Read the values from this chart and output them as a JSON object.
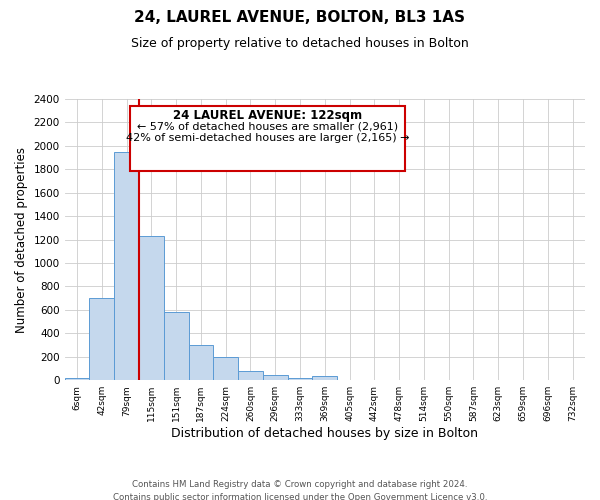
{
  "title": "24, LAUREL AVENUE, BOLTON, BL3 1AS",
  "subtitle": "Size of property relative to detached houses in Bolton",
  "xlabel": "Distribution of detached houses by size in Bolton",
  "ylabel": "Number of detached properties",
  "bin_labels": [
    "6sqm",
    "42sqm",
    "79sqm",
    "115sqm",
    "151sqm",
    "187sqm",
    "224sqm",
    "260sqm",
    "296sqm",
    "333sqm",
    "369sqm",
    "405sqm",
    "442sqm",
    "478sqm",
    "514sqm",
    "550sqm",
    "587sqm",
    "623sqm",
    "659sqm",
    "696sqm",
    "732sqm"
  ],
  "bar_heights": [
    20,
    700,
    1950,
    1230,
    580,
    300,
    200,
    80,
    45,
    20,
    40,
    5,
    5,
    0,
    0,
    0,
    0,
    0,
    0,
    0,
    0
  ],
  "bar_color": "#c5d8ed",
  "bar_edge_color": "#5b9bd5",
  "ylim": [
    0,
    2400
  ],
  "yticks": [
    0,
    200,
    400,
    600,
    800,
    1000,
    1200,
    1400,
    1600,
    1800,
    2000,
    2200,
    2400
  ],
  "property_line_x": 2.5,
  "property_line_color": "#cc0000",
  "annotation_title": "24 LAUREL AVENUE: 122sqm",
  "annotation_line1": "← 57% of detached houses are smaller (2,961)",
  "annotation_line2": "42% of semi-detached houses are larger (2,165) →",
  "annotation_box_color": "#cc0000",
  "footer_line1": "Contains HM Land Registry data © Crown copyright and database right 2024.",
  "footer_line2": "Contains public sector information licensed under the Open Government Licence v3.0.",
  "background_color": "#ffffff",
  "grid_color": "#cccccc"
}
